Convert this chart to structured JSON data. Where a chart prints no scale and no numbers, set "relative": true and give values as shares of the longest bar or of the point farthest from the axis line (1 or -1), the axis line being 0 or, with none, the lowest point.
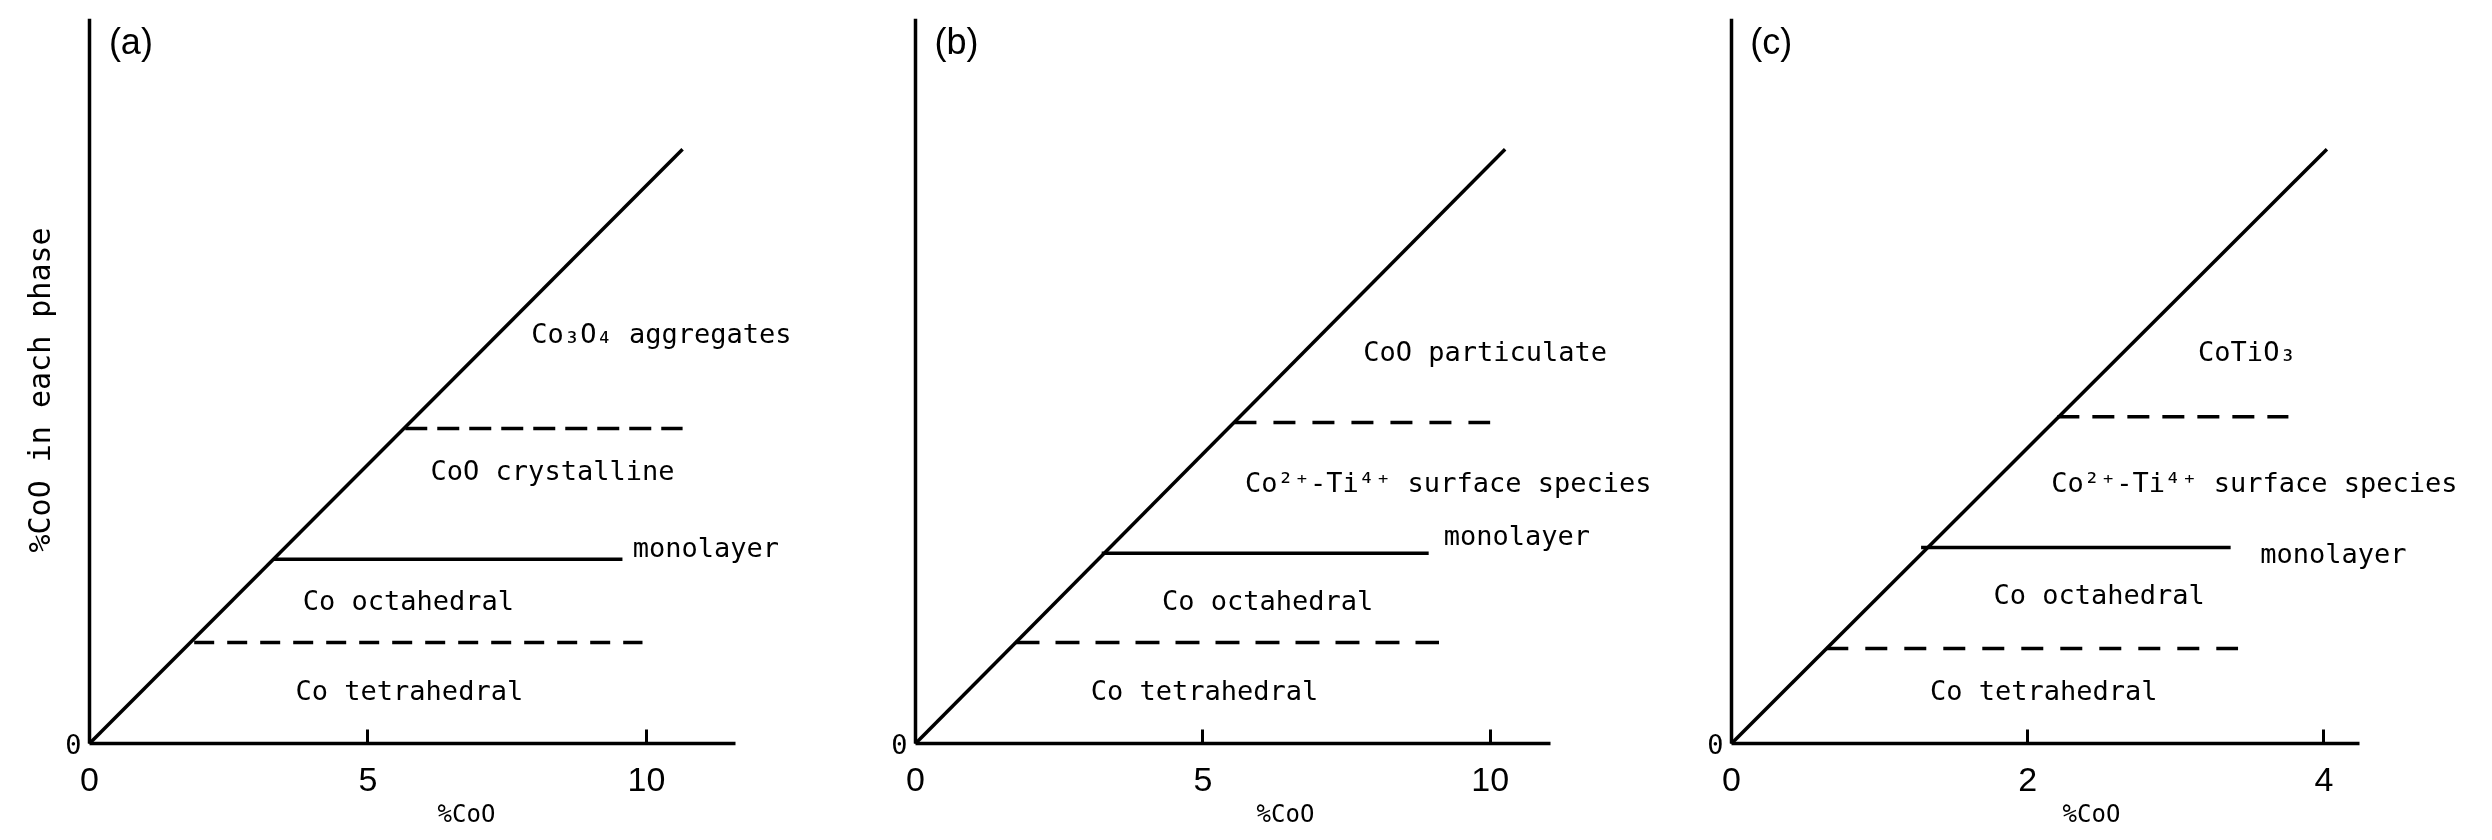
{
  "chart_data": [
    {
      "type": "line",
      "title": "(a)",
      "xlabel": "%CoO",
      "ylabel": "%CoO in each phase",
      "relative": true,
      "xlim": [
        0,
        11.6
      ],
      "xticks": [
        0,
        5,
        10
      ],
      "series": [
        {
          "color": "#000000",
          "line_style": "solid",
          "x": [
            0,
            10.65
          ],
          "values": [
            0,
            1
          ]
        },
        {
          "color": "#000000",
          "line_style": "dashed",
          "x": [
            1.88,
            9.93
          ],
          "values": [
            0.17,
            0.17
          ]
        },
        {
          "color": "#000000",
          "line_style": "solid",
          "x": [
            3.31,
            9.57
          ],
          "values": [
            0.31,
            0.31
          ]
        },
        {
          "color": "#000000",
          "line_style": "dashed",
          "x": [
            5.67,
            10.65
          ],
          "values": [
            0.53,
            0.53
          ]
        }
      ],
      "annotations": [
        "0",
        "Co₃O₄ aggregates",
        "CoO crystalline",
        "monolayer",
        "Co octahedral",
        "Co tetrahedral"
      ]
    },
    {
      "type": "line",
      "title": "(b)",
      "xlabel": "%CoO",
      "relative": true,
      "xlim": [
        0,
        11.05
      ],
      "xticks": [
        0,
        5,
        10
      ],
      "series": [
        {
          "color": "#000000",
          "line_style": "solid",
          "x": [
            0,
            10.26
          ],
          "values": [
            0,
            1
          ]
        },
        {
          "color": "#000000",
          "line_style": "dashed",
          "x": [
            1.74,
            9.11
          ],
          "values": [
            0.17,
            0.17
          ]
        },
        {
          "color": "#000000",
          "line_style": "solid",
          "x": [
            3.24,
            8.93
          ],
          "values": [
            0.32,
            0.32
          ]
        },
        {
          "color": "#000000",
          "line_style": "dashed",
          "x": [
            5.55,
            10.0
          ],
          "values": [
            0.54,
            0.54
          ]
        }
      ],
      "annotations": [
        "0",
        "CoO particulate",
        "Co²⁺-Ti⁴⁺ surface species",
        "monolayer",
        "Co octahedral",
        "Co tetrahedral"
      ]
    },
    {
      "type": "line",
      "title": "(c)",
      "xlabel": "%CoO",
      "relative": true,
      "xlim": [
        0,
        4.24
      ],
      "xticks": [
        0,
        2,
        4
      ],
      "series": [
        {
          "color": "#000000",
          "line_style": "solid",
          "x": [
            0,
            4.02
          ],
          "values": [
            0,
            1
          ]
        },
        {
          "color": "#000000",
          "line_style": "dashed",
          "x": [
            0.64,
            3.42
          ],
          "values": [
            0.16,
            0.16
          ]
        },
        {
          "color": "#000000",
          "line_style": "solid",
          "x": [
            1.28,
            3.37
          ],
          "values": [
            0.33,
            0.33
          ]
        },
        {
          "color": "#000000",
          "line_style": "dashed",
          "x": [
            2.2,
            3.76
          ],
          "values": [
            0.55,
            0.55
          ]
        }
      ],
      "annotations": [
        "0",
        "CoTiO₃",
        "Co²⁺-Ti⁴⁺ surface species",
        "monolayer",
        "Co octahedral",
        "Co tetrahedral"
      ]
    }
  ]
}
